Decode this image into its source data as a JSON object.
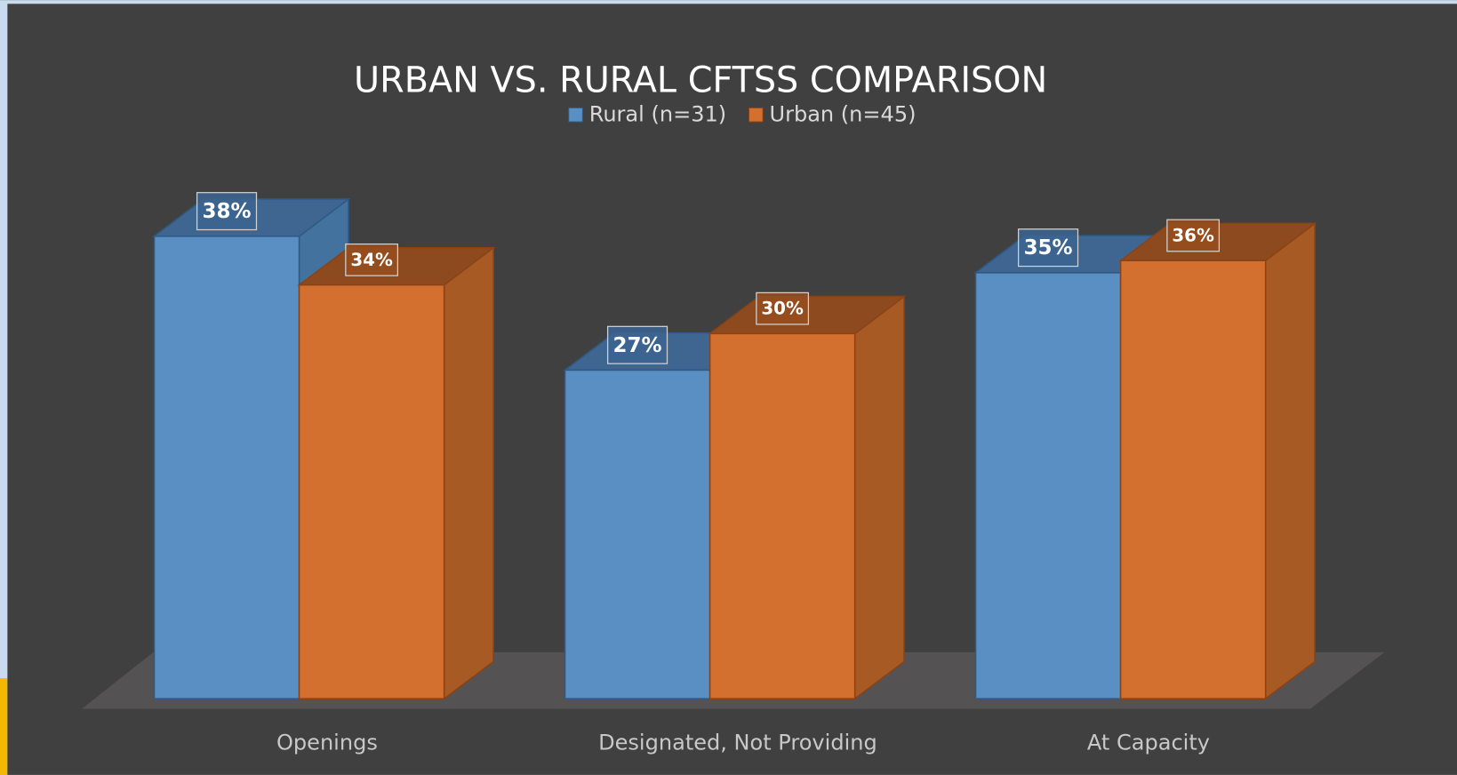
{
  "chart_data": {
    "type": "bar3d",
    "title": "URBAN VS. RURAL CFTSS COMPARISON",
    "categories": [
      "Openings",
      "Designated, Not Providing",
      "At Capacity"
    ],
    "series": [
      {
        "name": "Rural (n=31)",
        "color": "#5a8fc3",
        "values": [
          38,
          27,
          35
        ],
        "value_labels": [
          "38%",
          "27%",
          "35%"
        ]
      },
      {
        "name": "Urban (n=45)",
        "color": "#d4702f",
        "values": [
          34,
          30,
          36
        ],
        "value_labels": [
          "34%",
          "30%",
          "36%"
        ]
      }
    ],
    "legend": "top"
  }
}
